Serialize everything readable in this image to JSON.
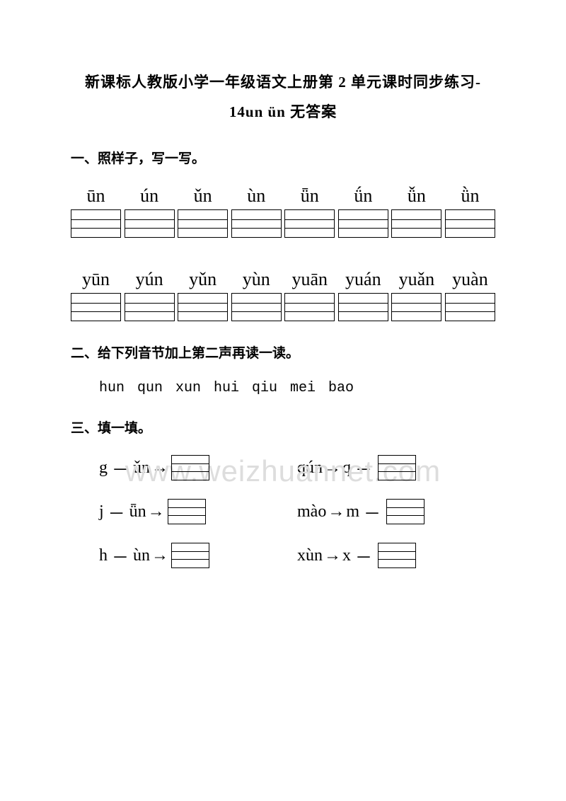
{
  "title": {
    "line1": "新课标人教版小学一年级语文上册第 2 单元课时同步练习-",
    "line2": "14un ün 无答案"
  },
  "section1": {
    "heading": "一、照样子，写一写。",
    "row1": [
      "ūn",
      "ún",
      "ǔn",
      "ùn",
      "ǖn",
      "ǘn",
      "ǚn",
      "ǜn"
    ],
    "row2": [
      "yūn",
      "yún",
      "yǔn",
      "yùn",
      "yuān",
      "yuán",
      "yuǎn",
      "yuàn"
    ]
  },
  "section2": {
    "heading": "二、给下列音节加上第二声再读一读。",
    "syllables": "hun  qun  xun  hui  qiu  mei  bao"
  },
  "section3": {
    "heading": "三、填一填。",
    "rows": [
      {
        "left": {
          "a": "g",
          "op": "－",
          "b": "ǔn",
          "dir": "combine"
        },
        "right": {
          "a": "qún",
          "op": "→",
          "b": "q",
          "dir": "split"
        }
      },
      {
        "left": {
          "a": "j",
          "op": "－",
          "b": "ǖn",
          "dir": "combine"
        },
        "right": {
          "a": "mào",
          "op": "→",
          "b": "m",
          "dir": "split"
        }
      },
      {
        "left": {
          "a": "h",
          "op": "－",
          "b": "ùn",
          "dir": "combine"
        },
        "right": {
          "a": "xùn",
          "op": "→",
          "b": "x",
          "dir": "split"
        }
      }
    ]
  },
  "watermark": "www.weizhuannet.com"
}
